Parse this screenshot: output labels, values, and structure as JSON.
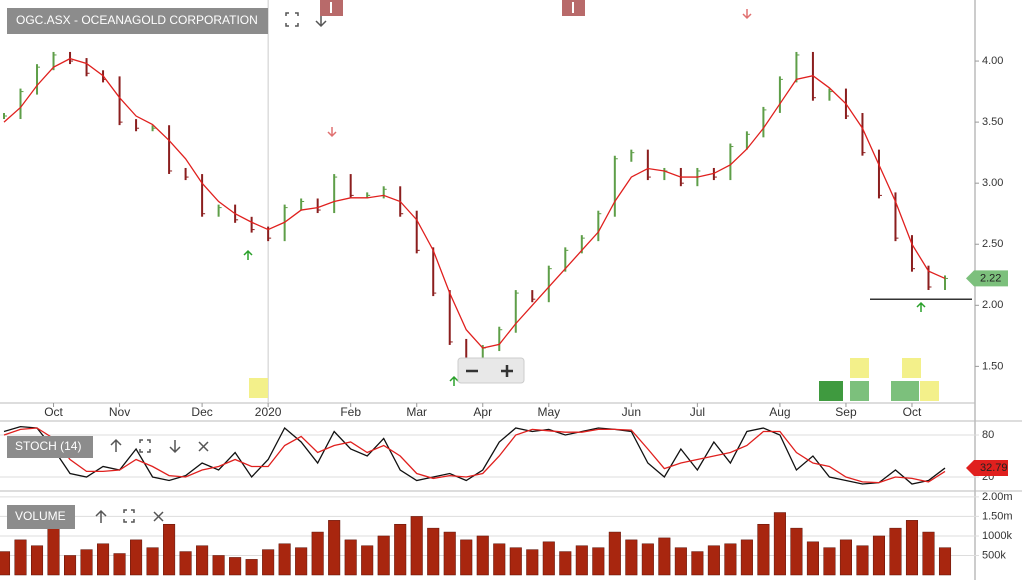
{
  "chart_data": [
    {
      "type": "price",
      "title": "OGC.ASX - OCEANAGOLD CORPORATION",
      "categories": [
        null,
        null,
        null,
        "Oct",
        null,
        null,
        null,
        "Nov",
        null,
        null,
        null,
        null,
        "Dec",
        null,
        null,
        null,
        "2020",
        null,
        null,
        null,
        null,
        "Feb",
        null,
        null,
        null,
        "Mar",
        null,
        null,
        null,
        "Apr",
        null,
        null,
        null,
        "May",
        null,
        null,
        null,
        null,
        "Jun",
        null,
        null,
        null,
        "Jul",
        null,
        null,
        null,
        null,
        "Aug",
        null,
        null,
        null,
        "Sep",
        null,
        null,
        null,
        "Oct",
        null,
        null
      ],
      "series": [
        {
          "type": "bar",
          "color": "#5e9e48",
          "down_color": "#8b1e1e",
          "values": [
            3.55,
            3.75,
            3.95,
            4.05,
            4.0,
            3.9,
            3.85,
            3.5,
            3.45,
            3.45,
            3.1,
            3.05,
            2.75,
            2.8,
            2.7,
            2.62,
            2.55,
            2.8,
            2.85,
            2.78,
            3.05,
            2.9,
            2.9,
            2.95,
            2.75,
            2.45,
            2.1,
            1.7,
            1.55,
            1.65,
            1.8,
            2.1,
            2.05,
            2.3,
            2.45,
            2.55,
            2.75,
            3.2,
            3.25,
            3.05,
            3.1,
            3.0,
            3.1,
            3.05,
            3.3,
            3.4,
            3.6,
            3.85,
            4.05,
            3.7,
            3.75,
            3.55,
            3.25,
            2.9,
            2.55,
            2.3,
            2.15,
            2.22
          ]
        },
        {
          "type": "line",
          "color": "#e0201e",
          "values": [
            3.5,
            3.62,
            3.8,
            3.95,
            4.02,
            3.98,
            3.88,
            3.7,
            3.55,
            3.48,
            3.35,
            3.2,
            3.0,
            2.85,
            2.75,
            2.68,
            2.62,
            2.68,
            2.78,
            2.8,
            2.85,
            2.88,
            2.88,
            2.9,
            2.85,
            2.7,
            2.45,
            2.1,
            1.8,
            1.65,
            1.68,
            1.85,
            2.0,
            2.15,
            2.3,
            2.45,
            2.6,
            2.85,
            3.05,
            3.12,
            3.1,
            3.05,
            3.05,
            3.08,
            3.15,
            3.28,
            3.45,
            3.65,
            3.85,
            3.88,
            3.78,
            3.65,
            3.45,
            3.15,
            2.85,
            2.5,
            2.28,
            2.22
          ]
        }
      ],
      "hline": 2.05,
      "ylim": [
        1.2,
        4.5
      ],
      "yticks": [
        {
          "value": 1.5,
          "label": "1.50"
        },
        {
          "value": 2,
          "label": "2.00"
        },
        {
          "value": 2.5,
          "label": "2.50"
        },
        {
          "value": 3,
          "label": "3.00"
        },
        {
          "value": 3.5,
          "label": "3.50"
        },
        {
          "value": 4,
          "label": "4.00"
        }
      ]
    },
    {
      "type": "line",
      "title": "STOCH (14)",
      "series": [
        {
          "color": "#111111",
          "values": [
            85,
            92,
            90,
            60,
            25,
            20,
            35,
            30,
            60,
            20,
            15,
            22,
            40,
            30,
            55,
            20,
            45,
            90,
            70,
            40,
            85,
            60,
            50,
            75,
            30,
            15,
            20,
            25,
            15,
            30,
            70,
            90,
            85,
            88,
            80,
            85,
            90,
            88,
            85,
            40,
            20,
            60,
            30,
            70,
            40,
            85,
            90,
            80,
            30,
            50,
            20,
            15,
            10,
            12,
            30,
            10,
            15,
            32.79
          ]
        },
        {
          "color": "#e0201e",
          "values": [
            80,
            88,
            90,
            75,
            45,
            28,
            28,
            30,
            45,
            35,
            22,
            20,
            30,
            35,
            45,
            35,
            35,
            65,
            78,
            55,
            65,
            70,
            55,
            65,
            50,
            25,
            18,
            22,
            20,
            25,
            50,
            80,
            88,
            86,
            84,
            84,
            88,
            88,
            87,
            60,
            32,
            40,
            45,
            50,
            55,
            65,
            85,
            85,
            55,
            40,
            35,
            20,
            13,
            12,
            20,
            18,
            13,
            28
          ]
        }
      ],
      "ylim": [
        0,
        100
      ],
      "yticks": [
        20,
        80
      ]
    },
    {
      "type": "bar",
      "title": "VOLUME",
      "color": "#a8260f",
      "values": [
        600000,
        900000,
        750000,
        1200000,
        500000,
        650000,
        800000,
        550000,
        900000,
        700000,
        1300000,
        600000,
        750000,
        500000,
        450000,
        400000,
        650000,
        800000,
        700000,
        1100000,
        1400000,
        900000,
        750000,
        1000000,
        1300000,
        1500000,
        1200000,
        1100000,
        900000,
        1000000,
        800000,
        700000,
        650000,
        850000,
        600000,
        750000,
        700000,
        1100000,
        900000,
        800000,
        950000,
        700000,
        600000,
        750000,
        800000,
        900000,
        1300000,
        1600000,
        1200000,
        850000,
        700000,
        900000,
        750000,
        1000000,
        1200000,
        1400000,
        1100000,
        700000
      ],
      "ylim": [
        0,
        2100000
      ],
      "yticks": [
        {
          "value": 500000,
          "label": "500k"
        },
        {
          "value": 1000000,
          "label": "1000k"
        },
        {
          "value": 1500000,
          "label": "1.50m"
        },
        {
          "value": 2000000,
          "label": "2.00m"
        }
      ]
    }
  ]
}
